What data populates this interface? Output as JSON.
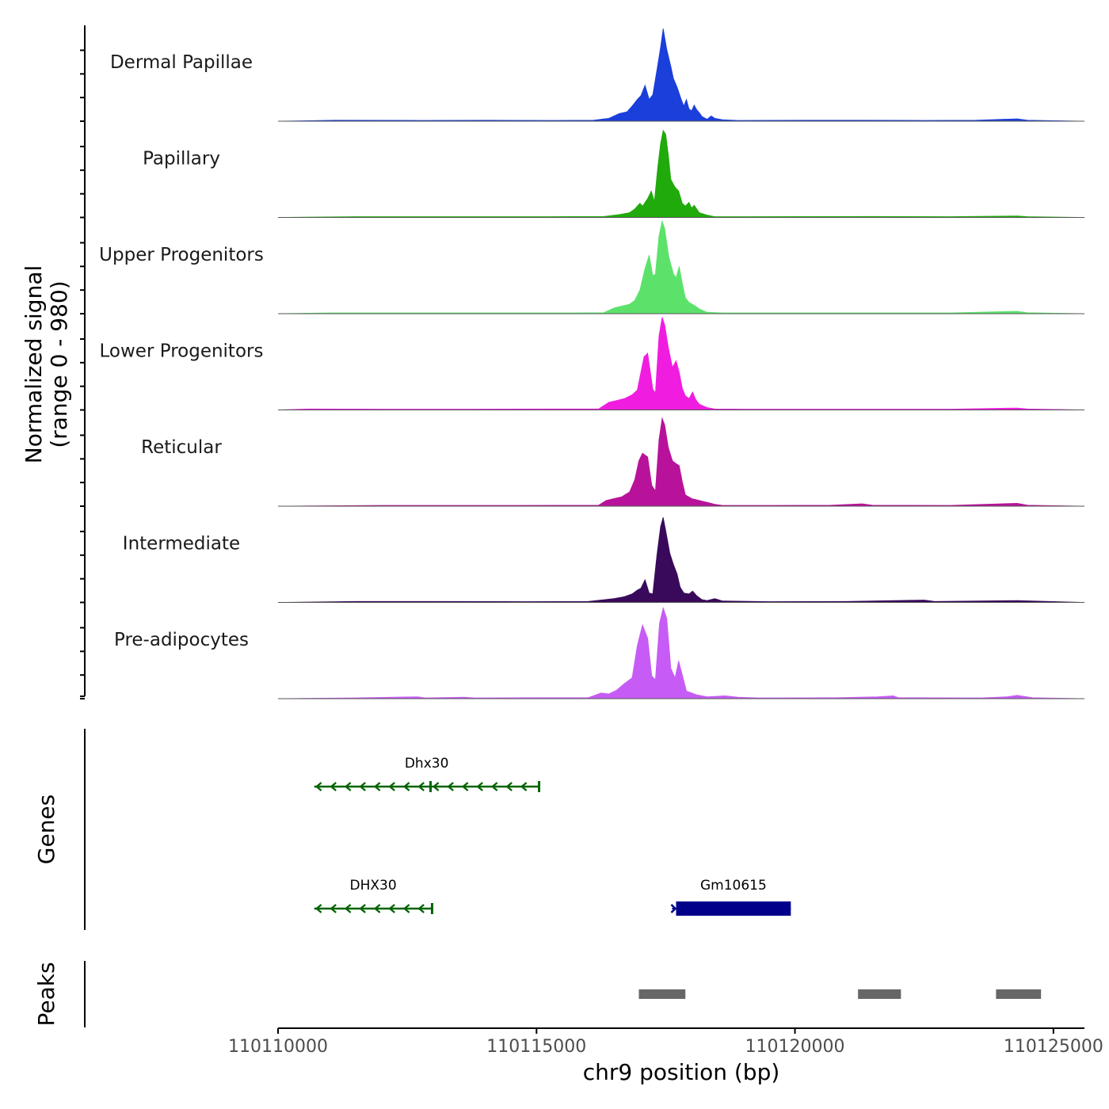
{
  "chart_data": {
    "type": "area",
    "chromosome": "chr9",
    "xlabel": "chr9 position (bp)",
    "ylabel_line1": "Normalized signal",
    "ylabel_line2": "(range 0 - 980)",
    "ylim": [
      0,
      980
    ],
    "xlim": [
      110110000,
      110125600
    ],
    "x_ticks": [
      110110000,
      110115000,
      110120000,
      110125000
    ],
    "x_tick_labels": [
      "110110000",
      "110115000",
      "110120000",
      "110125000"
    ],
    "tracks": [
      {
        "name": "Dermal Papillae",
        "color": "#1a3fdb",
        "points": [
          [
            110110000,
            0
          ],
          [
            110111100,
            10
          ],
          [
            110112800,
            8
          ],
          [
            110114100,
            10
          ],
          [
            110115300,
            8
          ],
          [
            110116100,
            10
          ],
          [
            110116400,
            30
          ],
          [
            110116600,
            80
          ],
          [
            110116750,
            100
          ],
          [
            110116850,
            160
          ],
          [
            110116950,
            230
          ],
          [
            110117020,
            270
          ],
          [
            110117100,
            380
          ],
          [
            110117180,
            230
          ],
          [
            110117250,
            280
          ],
          [
            110117330,
            540
          ],
          [
            110117400,
            780
          ],
          [
            110117450,
            980
          ],
          [
            110117520,
            760
          ],
          [
            110117600,
            580
          ],
          [
            110117650,
            450
          ],
          [
            110117720,
            360
          ],
          [
            110117800,
            230
          ],
          [
            110117850,
            160
          ],
          [
            110117900,
            230
          ],
          [
            110117950,
            130
          ],
          [
            110118000,
            110
          ],
          [
            110118050,
            170
          ],
          [
            110118100,
            120
          ],
          [
            110118150,
            90
          ],
          [
            110118200,
            50
          ],
          [
            110118300,
            20
          ],
          [
            110118380,
            55
          ],
          [
            110118450,
            30
          ],
          [
            110118600,
            15
          ],
          [
            110118900,
            8
          ],
          [
            110120200,
            10
          ],
          [
            110121300,
            10
          ],
          [
            110122500,
            8
          ],
          [
            110123500,
            10
          ],
          [
            110124300,
            25
          ],
          [
            110124500,
            10
          ],
          [
            110125600,
            0
          ]
        ]
      },
      {
        "name": "Papillary",
        "color": "#20aa0b",
        "points": [
          [
            110110000,
            0
          ],
          [
            110111500,
            8
          ],
          [
            110113800,
            8
          ],
          [
            110115200,
            8
          ],
          [
            110116300,
            10
          ],
          [
            110116600,
            30
          ],
          [
            110116800,
            50
          ],
          [
            110116900,
            90
          ],
          [
            110117000,
            150
          ],
          [
            110117050,
            120
          ],
          [
            110117150,
            200
          ],
          [
            110117220,
            280
          ],
          [
            110117280,
            170
          ],
          [
            110117350,
            550
          ],
          [
            110117400,
            780
          ],
          [
            110117450,
            920
          ],
          [
            110117500,
            880
          ],
          [
            110117550,
            660
          ],
          [
            110117600,
            400
          ],
          [
            110117680,
            320
          ],
          [
            110117750,
            280
          ],
          [
            110117820,
            150
          ],
          [
            110117880,
            120
          ],
          [
            110117950,
            160
          ],
          [
            110118000,
            100
          ],
          [
            110118050,
            130
          ],
          [
            110118100,
            90
          ],
          [
            110118150,
            50
          ],
          [
            110118300,
            25
          ],
          [
            110118450,
            8
          ],
          [
            110119000,
            8
          ],
          [
            110121500,
            10
          ],
          [
            110123000,
            8
          ],
          [
            110124300,
            15
          ],
          [
            110124500,
            8
          ],
          [
            110125600,
            0
          ]
        ]
      },
      {
        "name": "Upper Progenitors",
        "color": "#5ce26b",
        "points": [
          [
            110110000,
            0
          ],
          [
            110111000,
            8
          ],
          [
            110112600,
            8
          ],
          [
            110114000,
            8
          ],
          [
            110115700,
            8
          ],
          [
            110116300,
            10
          ],
          [
            110116500,
            60
          ],
          [
            110116650,
            80
          ],
          [
            110116800,
            100
          ],
          [
            110116900,
            140
          ],
          [
            110117000,
            250
          ],
          [
            110117100,
            480
          ],
          [
            110117180,
            620
          ],
          [
            110117250,
            400
          ],
          [
            110117300,
            420
          ],
          [
            110117370,
            820
          ],
          [
            110117430,
            980
          ],
          [
            110117480,
            900
          ],
          [
            110117560,
            600
          ],
          [
            110117650,
            420
          ],
          [
            110117700,
            380
          ],
          [
            110117760,
            500
          ],
          [
            110117820,
            320
          ],
          [
            110117880,
            170
          ],
          [
            110117950,
            120
          ],
          [
            110118050,
            90
          ],
          [
            110118150,
            50
          ],
          [
            110118300,
            15
          ],
          [
            110118600,
            8
          ],
          [
            110120500,
            8
          ],
          [
            110123000,
            8
          ],
          [
            110124300,
            25
          ],
          [
            110124500,
            10
          ],
          [
            110125600,
            0
          ]
        ]
      },
      {
        "name": "Lower Progenitors",
        "color": "#f01de0",
        "points": [
          [
            110110000,
            0
          ],
          [
            110110600,
            10
          ],
          [
            110112000,
            8
          ],
          [
            110113800,
            8
          ],
          [
            110115300,
            10
          ],
          [
            110116200,
            10
          ],
          [
            110116400,
            80
          ],
          [
            110116550,
            100
          ],
          [
            110116700,
            120
          ],
          [
            110116850,
            160
          ],
          [
            110116950,
            210
          ],
          [
            110117020,
            400
          ],
          [
            110117080,
            560
          ],
          [
            110117150,
            600
          ],
          [
            110117250,
            220
          ],
          [
            110117300,
            180
          ],
          [
            110117370,
            780
          ],
          [
            110117430,
            980
          ],
          [
            110117480,
            900
          ],
          [
            110117550,
            660
          ],
          [
            110117630,
            450
          ],
          [
            110117700,
            520
          ],
          [
            110117760,
            400
          ],
          [
            110117820,
            230
          ],
          [
            110117880,
            150
          ],
          [
            110117950,
            120
          ],
          [
            110118020,
            190
          ],
          [
            110118080,
            110
          ],
          [
            110118150,
            60
          ],
          [
            110118300,
            25
          ],
          [
            110118450,
            10
          ],
          [
            110119000,
            8
          ],
          [
            110121000,
            8
          ],
          [
            110123000,
            8
          ],
          [
            110124300,
            20
          ],
          [
            110124500,
            10
          ],
          [
            110125600,
            0
          ]
        ]
      },
      {
        "name": "Reticular",
        "color": "#b8129a",
        "points": [
          [
            110110000,
            0
          ],
          [
            110112000,
            8
          ],
          [
            110114600,
            8
          ],
          [
            110116200,
            10
          ],
          [
            110116350,
            60
          ],
          [
            110116500,
            80
          ],
          [
            110116650,
            100
          ],
          [
            110116800,
            150
          ],
          [
            110116900,
            280
          ],
          [
            110116980,
            480
          ],
          [
            110117050,
            560
          ],
          [
            110117150,
            520
          ],
          [
            110117230,
            220
          ],
          [
            110117300,
            160
          ],
          [
            110117370,
            700
          ],
          [
            110117430,
            930
          ],
          [
            110117480,
            860
          ],
          [
            110117550,
            620
          ],
          [
            110117630,
            480
          ],
          [
            110117700,
            450
          ],
          [
            110117760,
            430
          ],
          [
            110117820,
            260
          ],
          [
            110117880,
            120
          ],
          [
            110118000,
            80
          ],
          [
            110118150,
            60
          ],
          [
            110118300,
            40
          ],
          [
            110118450,
            20
          ],
          [
            110118600,
            8
          ],
          [
            110119500,
            8
          ],
          [
            110120700,
            10
          ],
          [
            110121300,
            25
          ],
          [
            110121500,
            10
          ],
          [
            110123000,
            8
          ],
          [
            110124300,
            30
          ],
          [
            110124500,
            10
          ],
          [
            110125600,
            0
          ]
        ]
      },
      {
        "name": "Intermediate",
        "color": "#390a5b",
        "points": [
          [
            110110000,
            0
          ],
          [
            110111500,
            10
          ],
          [
            110113000,
            10
          ],
          [
            110114800,
            8
          ],
          [
            110116000,
            10
          ],
          [
            110116500,
            40
          ],
          [
            110116700,
            60
          ],
          [
            110116850,
            90
          ],
          [
            110116950,
            130
          ],
          [
            110117020,
            150
          ],
          [
            110117100,
            240
          ],
          [
            110117180,
            100
          ],
          [
            110117250,
            90
          ],
          [
            110117330,
            500
          ],
          [
            110117400,
            800
          ],
          [
            110117450,
            900
          ],
          [
            110117500,
            760
          ],
          [
            110117580,
            520
          ],
          [
            110117650,
            400
          ],
          [
            110117720,
            300
          ],
          [
            110117780,
            160
          ],
          [
            110117850,
            100
          ],
          [
            110117950,
            90
          ],
          [
            110118020,
            120
          ],
          [
            110118100,
            70
          ],
          [
            110118200,
            30
          ],
          [
            110118300,
            20
          ],
          [
            110118450,
            40
          ],
          [
            110118600,
            15
          ],
          [
            110119500,
            8
          ],
          [
            110121000,
            10
          ],
          [
            110122500,
            25
          ],
          [
            110122700,
            10
          ],
          [
            110124300,
            20
          ],
          [
            110125600,
            0
          ]
        ]
      },
      {
        "name": "Pre-adipocytes",
        "color": "#c65cf5",
        "points": [
          [
            110110000,
            0
          ],
          [
            110111500,
            8
          ],
          [
            110112700,
            20
          ],
          [
            110112850,
            8
          ],
          [
            110113600,
            15
          ],
          [
            110113800,
            8
          ],
          [
            110115000,
            10
          ],
          [
            110116000,
            10
          ],
          [
            110116250,
            60
          ],
          [
            110116400,
            50
          ],
          [
            110116550,
            90
          ],
          [
            110116700,
            160
          ],
          [
            110116850,
            220
          ],
          [
            110116950,
            560
          ],
          [
            110117050,
            780
          ],
          [
            110117150,
            640
          ],
          [
            110117230,
            240
          ],
          [
            110117300,
            200
          ],
          [
            110117380,
            800
          ],
          [
            110117450,
            960
          ],
          [
            110117520,
            850
          ],
          [
            110117600,
            320
          ],
          [
            110117680,
            220
          ],
          [
            110117750,
            400
          ],
          [
            110117830,
            230
          ],
          [
            110117900,
            80
          ],
          [
            110118000,
            60
          ],
          [
            110118100,
            40
          ],
          [
            110118300,
            20
          ],
          [
            110118650,
            30
          ],
          [
            110118900,
            15
          ],
          [
            110119300,
            8
          ],
          [
            110120800,
            10
          ],
          [
            110121600,
            20
          ],
          [
            110121900,
            30
          ],
          [
            110122000,
            10
          ],
          [
            110123600,
            8
          ],
          [
            110124100,
            20
          ],
          [
            110124300,
            35
          ],
          [
            110124600,
            10
          ],
          [
            110125600,
            0
          ]
        ]
      }
    ],
    "genes_track_label": "Genes",
    "genes": [
      {
        "name": "Dhx30",
        "start": 110110700,
        "end": 110115050,
        "strand": "-",
        "color": "#006400",
        "row": 0,
        "thick": false,
        "marker_at": 110112950
      },
      {
        "name": "DHX30",
        "start": 110110700,
        "end": 110112980,
        "strand": "-",
        "color": "#006400",
        "row": 1,
        "thick": false
      },
      {
        "name": "Gm10615",
        "start": 110117700,
        "end": 110119920,
        "strand": "+",
        "color": "#00008b",
        "row": 1,
        "thick": true
      }
    ],
    "peaks_track_label": "Peaks",
    "peaks_color": "#666666",
    "peaks": [
      {
        "start": 110116980,
        "end": 110117880
      },
      {
        "start": 110121220,
        "end": 110122050
      },
      {
        "start": 110123890,
        "end": 110124760
      }
    ]
  }
}
